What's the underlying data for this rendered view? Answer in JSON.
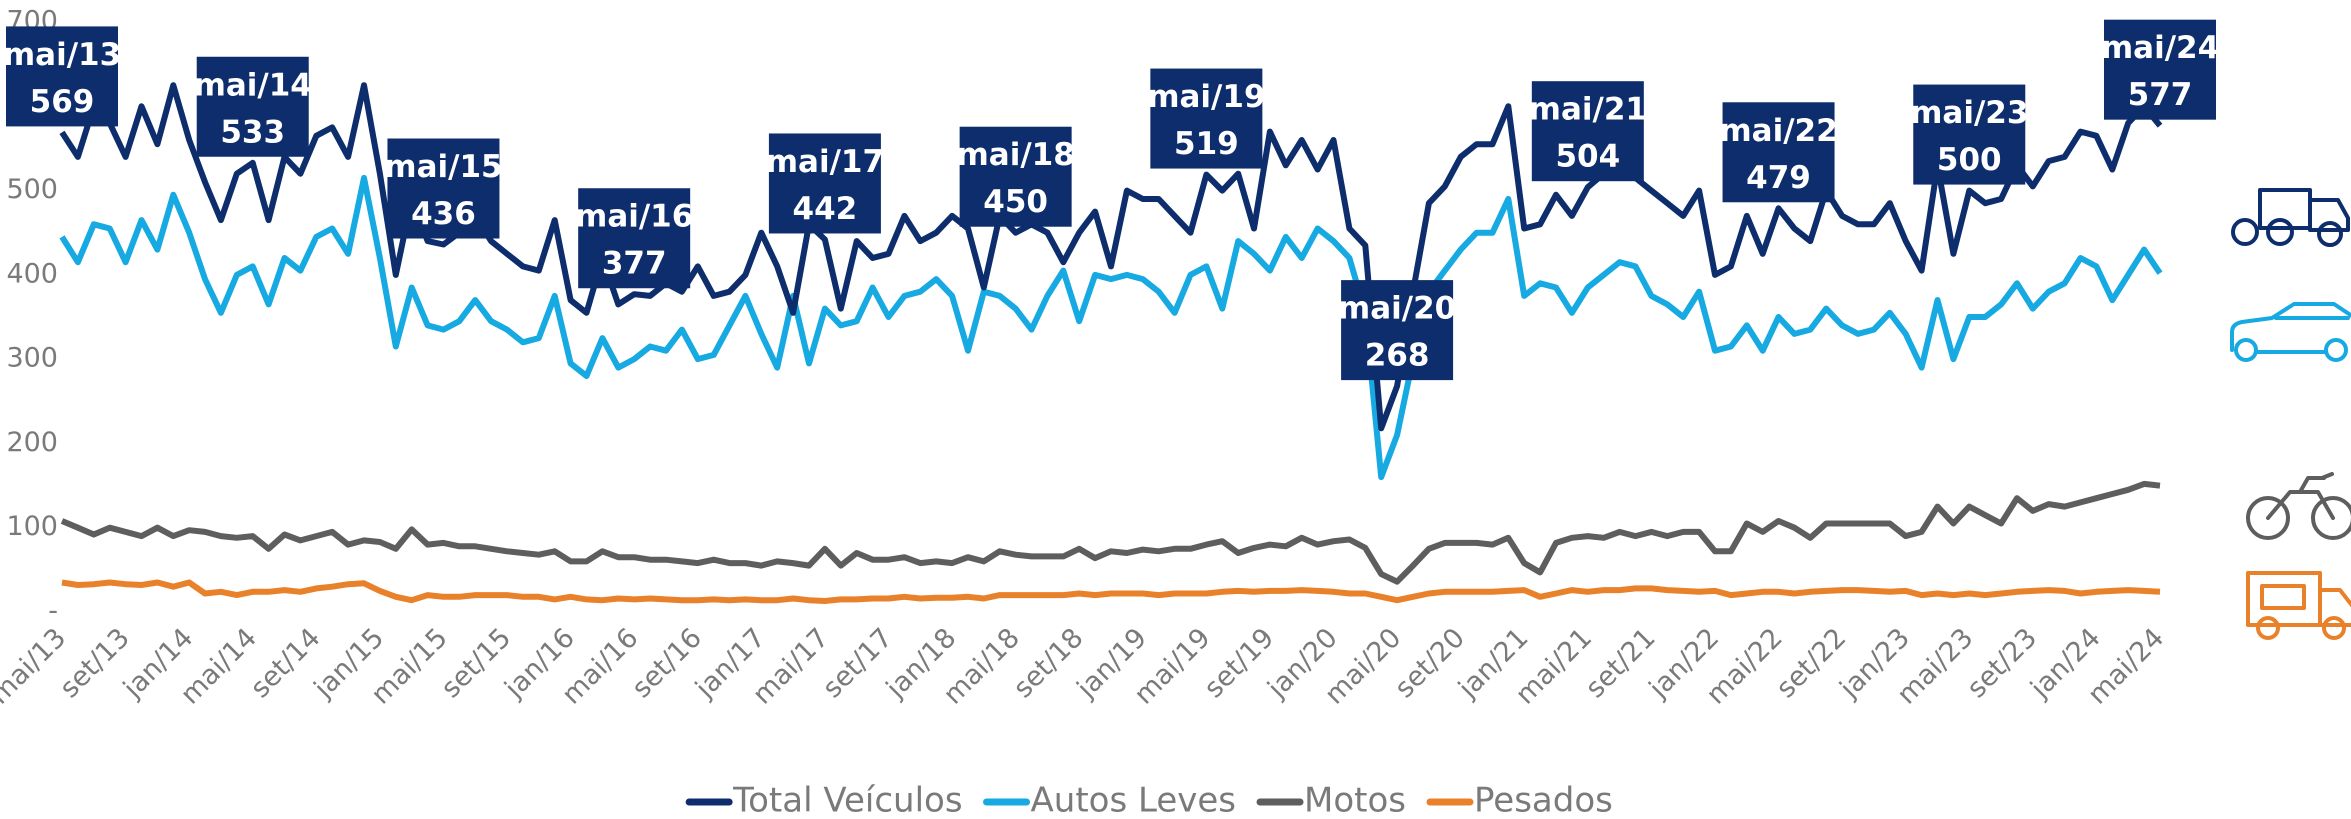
{
  "chart_data": {
    "type": "line",
    "categories": [
      "mai/13",
      null,
      null,
      null,
      "set/13",
      null,
      null,
      null,
      "jan/14",
      null,
      null,
      null,
      "mai/14",
      null,
      null,
      null,
      "set/14",
      null,
      null,
      null,
      "jan/15",
      null,
      null,
      null,
      "mai/15",
      null,
      null,
      null,
      "set/15",
      null,
      null,
      null,
      "jan/16",
      null,
      null,
      null,
      "mai/16",
      null,
      null,
      null,
      "set/16",
      null,
      null,
      null,
      "jan/17",
      null,
      null,
      null,
      "mai/17",
      null,
      null,
      null,
      "set/17",
      null,
      null,
      null,
      "jan/18",
      null,
      null,
      null,
      "mai/18",
      null,
      null,
      null,
      "set/18",
      null,
      null,
      null,
      "jan/19",
      null,
      null,
      null,
      "mai/19",
      null,
      null,
      null,
      "set/19",
      null,
      null,
      null,
      "jan/20",
      null,
      null,
      null,
      "mai/20",
      null,
      null,
      null,
      "set/20",
      null,
      null,
      null,
      "jan/21",
      null,
      null,
      null,
      "mai/21",
      null,
      null,
      null,
      "set/21",
      null,
      null,
      null,
      "jan/22",
      null,
      null,
      null,
      "mai/22",
      null,
      null,
      null,
      "set/22",
      null,
      null,
      null,
      "jan/23",
      null,
      null,
      null,
      "mai/23",
      null,
      null,
      null,
      "set/23",
      null,
      null,
      null,
      "jan/24",
      null,
      null,
      null,
      "mai/24"
    ],
    "series": [
      {
        "name": "Total Veículos",
        "color": "#0d2d6c",
        "label_every": 12,
        "values": [
          569,
          540,
          600,
          580,
          540,
          600,
          555,
          625,
          560,
          510,
          465,
          520,
          533,
          465,
          540,
          520,
          565,
          575,
          540,
          625,
          520,
          400,
          490,
          440,
          436,
          450,
          470,
          440,
          425,
          410,
          405,
          465,
          370,
          355,
          420,
          365,
          377,
          375,
          390,
          380,
          410,
          375,
          380,
          400,
          450,
          410,
          355,
          460,
          442,
          360,
          440,
          420,
          425,
          470,
          440,
          450,
          470,
          455,
          385,
          470,
          450,
          460,
          450,
          415,
          450,
          475,
          410,
          500,
          490,
          490,
          470,
          450,
          519,
          500,
          520,
          455,
          570,
          530,
          560,
          525,
          560,
          455,
          435,
          218,
          268,
          380,
          485,
          505,
          540,
          555,
          555,
          600,
          455,
          460,
          495,
          470,
          504,
          520,
          530,
          515,
          500,
          485,
          470,
          500,
          400,
          410,
          470,
          425,
          479,
          455,
          440,
          500,
          470,
          460,
          460,
          485,
          440,
          405,
          530,
          425,
          500,
          485,
          490,
          530,
          505,
          535,
          540,
          570,
          565,
          525,
          580,
          600,
          577
        ]
      },
      {
        "name": "Autos Leves",
        "color": "#17a9e1",
        "values": [
          445,
          415,
          460,
          455,
          415,
          465,
          430,
          495,
          450,
          395,
          355,
          400,
          410,
          365,
          420,
          405,
          445,
          455,
          425,
          515,
          420,
          315,
          385,
          340,
          335,
          345,
          370,
          345,
          335,
          320,
          325,
          375,
          295,
          280,
          325,
          290,
          300,
          315,
          310,
          335,
          300,
          305,
          340,
          375,
          330,
          290,
          375,
          295,
          360,
          340,
          345,
          385,
          350,
          375,
          380,
          395,
          375,
          310,
          380,
          375,
          360,
          335,
          375,
          405,
          345,
          400,
          395,
          400,
          395,
          380,
          355,
          400,
          410,
          360,
          440,
          425,
          405,
          445,
          420,
          455,
          440,
          420,
          355,
          160,
          210,
          300,
          380,
          405,
          430,
          450,
          450,
          490,
          375,
          390,
          385,
          355,
          385,
          400,
          415,
          410,
          375,
          365,
          350,
          380,
          310,
          315,
          340,
          310,
          350,
          330,
          335,
          360,
          340,
          330,
          335,
          355,
          330,
          290,
          370,
          300,
          350,
          350,
          365,
          390,
          360,
          380,
          390,
          420,
          410,
          370,
          400,
          430,
          402
        ]
      },
      {
        "name": "Motos",
        "color": "#5e5e5e",
        "values": [
          108,
          100,
          92,
          100,
          95,
          90,
          100,
          90,
          97,
          95,
          90,
          88,
          90,
          75,
          92,
          85,
          90,
          95,
          80,
          85,
          83,
          75,
          98,
          80,
          82,
          78,
          78,
          75,
          72,
          70,
          68,
          72,
          60,
          60,
          72,
          65,
          65,
          62,
          62,
          60,
          58,
          62,
          58,
          58,
          55,
          60,
          58,
          55,
          75,
          55,
          70,
          62,
          62,
          65,
          58,
          60,
          58,
          65,
          60,
          72,
          68,
          66,
          66,
          66,
          75,
          64,
          72,
          70,
          74,
          72,
          75,
          75,
          80,
          84,
          70,
          76,
          80,
          78,
          88,
          80,
          84,
          86,
          76,
          45,
          36,
          55,
          75,
          82,
          82,
          82,
          80,
          88,
          58,
          47,
          82,
          88,
          90,
          88,
          95,
          90,
          95,
          90,
          95,
          95,
          72,
          72,
          105,
          95,
          108,
          100,
          88,
          105,
          105,
          105,
          105,
          105,
          90,
          95,
          125,
          105,
          125,
          115,
          105,
          135,
          120,
          128,
          125,
          130,
          135,
          140,
          145,
          152,
          150
        ]
      },
      {
        "name": "Pesados",
        "color": "#e8812a",
        "values": [
          35,
          32,
          33,
          35,
          33,
          32,
          35,
          30,
          35,
          22,
          24,
          20,
          24,
          24,
          26,
          24,
          28,
          30,
          33,
          34,
          25,
          18,
          14,
          20,
          18,
          18,
          20,
          20,
          20,
          18,
          18,
          15,
          18,
          15,
          14,
          16,
          15,
          16,
          15,
          14,
          14,
          15,
          14,
          15,
          14,
          14,
          16,
          14,
          13,
          15,
          15,
          16,
          16,
          18,
          16,
          17,
          17,
          18,
          16,
          20,
          20,
          20,
          20,
          20,
          22,
          20,
          22,
          22,
          22,
          20,
          22,
          22,
          22,
          24,
          25,
          24,
          25,
          25,
          26,
          25,
          24,
          22,
          22,
          18,
          14,
          18,
          22,
          24,
          24,
          24,
          24,
          25,
          26,
          18,
          22,
          26,
          24,
          26,
          26,
          28,
          28,
          26,
          25,
          24,
          25,
          20,
          22,
          24,
          24,
          22,
          24,
          25,
          26,
          26,
          25,
          24,
          25,
          20,
          22,
          20,
          22,
          20,
          22,
          24,
          25,
          26,
          25,
          22,
          24,
          25,
          26,
          25,
          24
        ]
      }
    ],
    "ylim": [
      0,
      700
    ],
    "yticks": [
      {
        "value": 0,
        "label": "-"
      },
      100,
      200,
      300,
      400,
      500,
      600,
      700
    ],
    "grid": false,
    "legend": "bottom"
  }
}
